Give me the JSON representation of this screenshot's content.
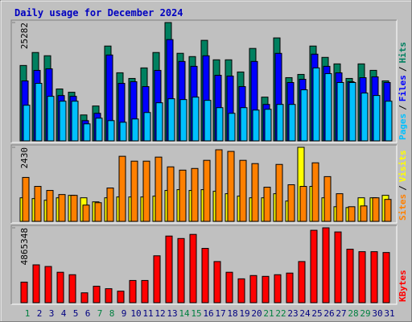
{
  "chart_data": [
    {
      "type": "bar",
      "title": "Daily usage for December 2024",
      "categories": [
        "1",
        "2",
        "3",
        "4",
        "5",
        "6",
        "7",
        "8",
        "9",
        "10",
        "11",
        "12",
        "13",
        "14",
        "15",
        "16",
        "17",
        "18",
        "19",
        "20",
        "21",
        "22",
        "23",
        "24",
        "25",
        "26",
        "27",
        "28",
        "29",
        "30",
        "31"
      ],
      "category_colors": [
        "#008040",
        "#000080",
        "#000080",
        "#000080",
        "#000080",
        "#000080",
        "#008040",
        "#008040",
        "#000080",
        "#000080",
        "#000080",
        "#000080",
        "#000080",
        "#008040",
        "#008040",
        "#000080",
        "#000080",
        "#000080",
        "#000080",
        "#000080",
        "#008040",
        "#008040",
        "#000080",
        "#000080",
        "#000080",
        "#000080",
        "#000080",
        "#008040",
        "#008040",
        "#000080",
        "#000080"
      ],
      "ylim": [
        0,
        25282
      ],
      "yticks": [
        25282
      ],
      "legend_separator": "/",
      "series": [
        {
          "name": "Pages",
          "color": "#00c0ff",
          "values": [
            7620,
            12290,
            9520,
            8480,
            8480,
            3640,
            4850,
            4330,
            3980,
            4680,
            6060,
            8140,
            9000,
            8830,
            9350,
            8660,
            7100,
            5890,
            7100,
            6580,
            6750,
            7790,
            7790,
            10910,
            15590,
            14370,
            12470,
            12470,
            10220,
            9700,
            8480
          ]
        },
        {
          "name": "Files",
          "color": "#0000ff",
          "values": [
            12810,
            15060,
            15400,
            9690,
            9520,
            4330,
            5890,
            18350,
            12290,
            12640,
            11600,
            15060,
            21640,
            16970,
            15930,
            18180,
            14020,
            13850,
            11600,
            16970,
            7790,
            18700,
            12470,
            13160,
            18530,
            15930,
            14540,
            12640,
            13500,
            13680,
            12470
          ]
        },
        {
          "name": "Hits",
          "color": "#008060",
          "values": [
            16110,
            18880,
            18190,
            11090,
            10390,
            5540,
            7450,
            20260,
            14550,
            13340,
            15590,
            18880,
            25282,
            18710,
            18010,
            21480,
            17320,
            17320,
            14720,
            19750,
            9350,
            22000,
            13510,
            14200,
            20260,
            17840,
            16450,
            13340,
            16450,
            15070,
            12820
          ]
        }
      ]
    },
    {
      "type": "bar",
      "ylim": [
        0,
        2430
      ],
      "yticks": [
        2430
      ],
      "legend_separator": "/",
      "series": [
        {
          "name": "Sites",
          "color": "#ff8000",
          "values": [
            1442,
            1148,
            1015,
            881,
            854,
            534,
            614,
            1095,
            2136,
            1976,
            1976,
            2109,
            1789,
            1682,
            1736,
            2003,
            2350,
            2296,
            2003,
            1896,
            1121,
            1869,
            1202,
            1148,
            1922,
            1469,
            908,
            481,
            507,
            774,
            721
          ]
        },
        {
          "name": "Visits",
          "color": "#ffff00",
          "values": [
            774,
            748,
            694,
            774,
            854,
            774,
            641,
            774,
            801,
            801,
            801,
            828,
            1015,
            1041,
            1015,
            1041,
            988,
            908,
            828,
            774,
            774,
            908,
            668,
            2430,
            1148,
            774,
            481,
            454,
            774,
            774,
            854
          ]
        }
      ]
    },
    {
      "type": "bar",
      "ylim": [
        0,
        4865348
      ],
      "yticks": [
        4865348
      ],
      "series": [
        {
          "name": "KBytes",
          "color": "#ff0000",
          "values": [
            1336600,
            2459400,
            2352500,
            1978200,
            1817800,
            641600,
            1069300,
            908900,
            748500,
            1443600,
            1443600,
            3047500,
            4330700,
            4170300,
            4437600,
            3528700,
            2673300,
            1978200,
            1550500,
            1764300,
            1710900,
            1817800,
            1924700,
            2673300,
            4704900,
            4865348,
            4598000,
            3475200,
            3314800,
            3314800,
            3261400
          ]
        }
      ]
    }
  ]
}
